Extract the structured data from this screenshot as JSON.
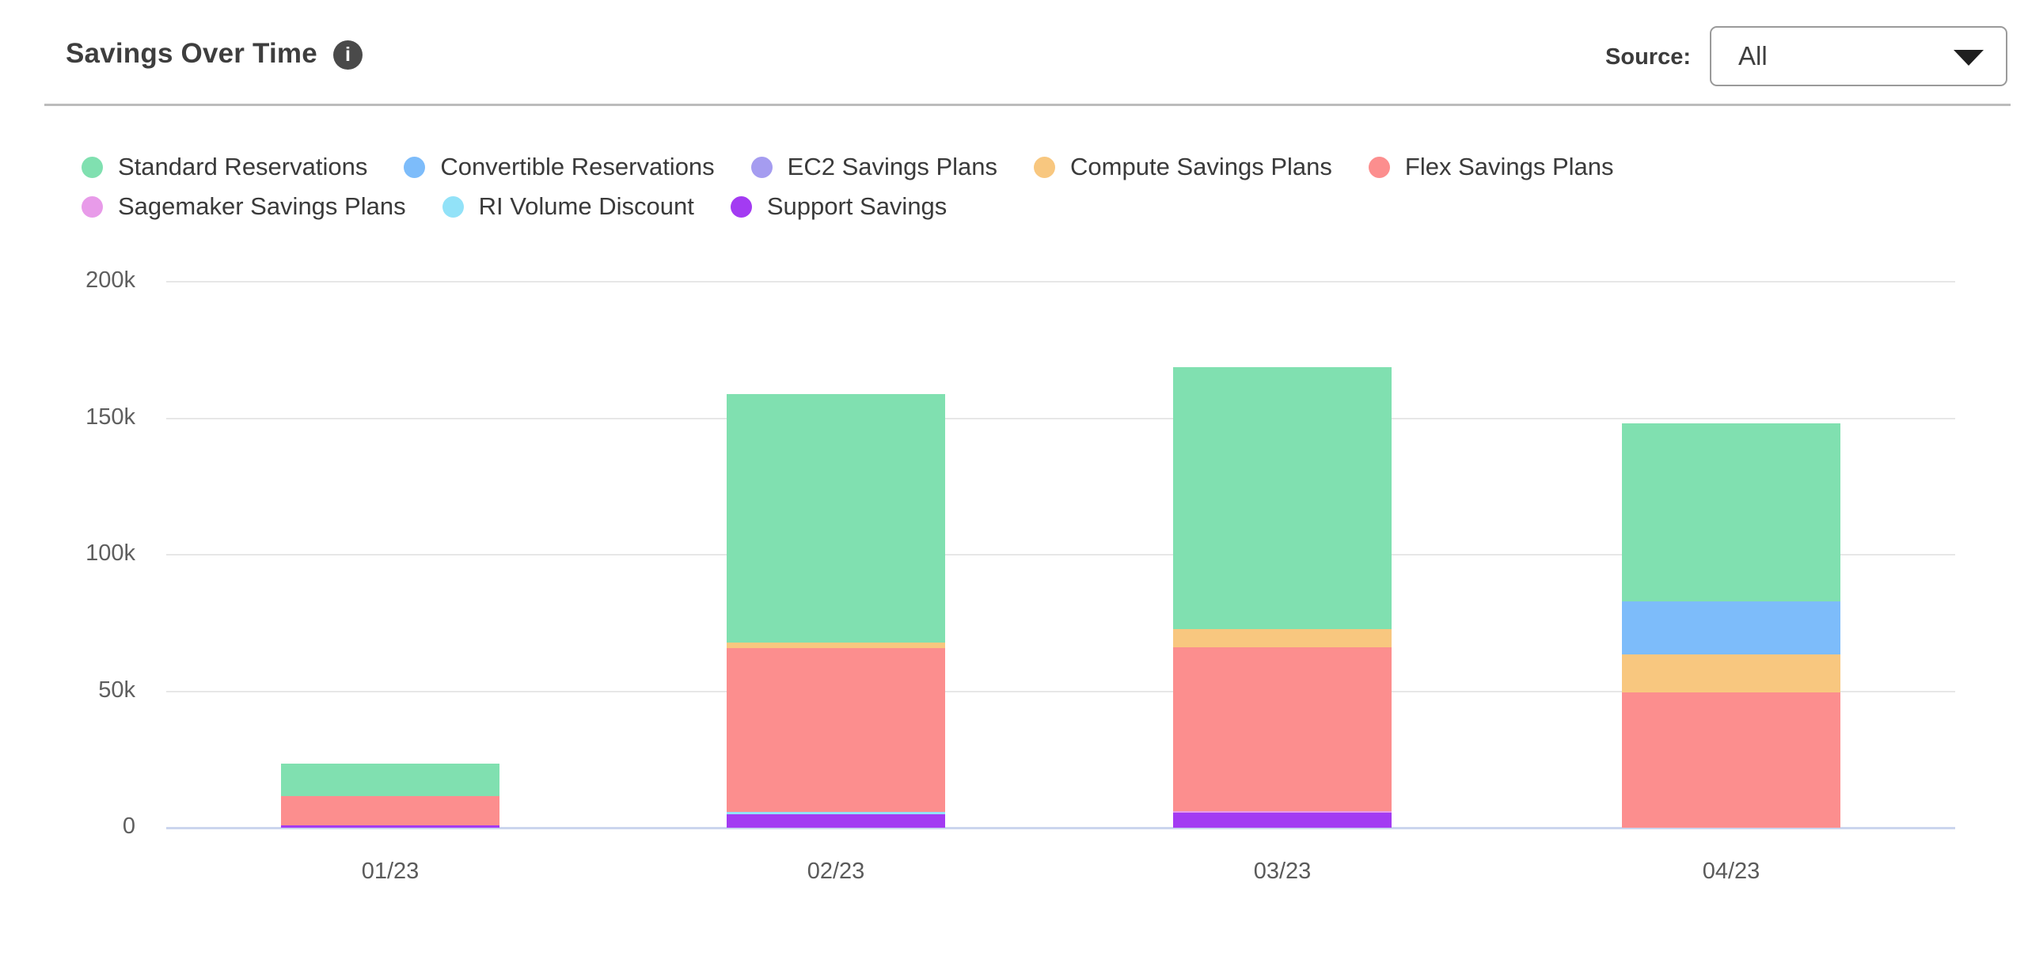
{
  "header": {
    "title": "Savings Over Time",
    "info_icon": "i",
    "source_label": "Source:",
    "source_value": "All"
  },
  "legend": {
    "rows": [
      [
        {
          "label": "Standard Reservations",
          "color": "#80E0B0"
        },
        {
          "label": "Convertible Reservations",
          "color": "#7DBCFA"
        },
        {
          "label": "EC2 Savings Plans",
          "color": "#A59CF0"
        },
        {
          "label": "Compute Savings Plans",
          "color": "#F8C77F"
        },
        {
          "label": "Flex Savings Plans",
          "color": "#FC8E8E"
        }
      ],
      [
        {
          "label": "Sagemaker Savings Plans",
          "color": "#E89BE9"
        },
        {
          "label": "RI Volume Discount",
          "color": "#92E2F8"
        },
        {
          "label": "Support Savings",
          "color": "#A33BF2"
        }
      ]
    ]
  },
  "chart_data": {
    "type": "bar",
    "stacked": true,
    "title": "Savings Over Time",
    "xlabel": "",
    "ylabel": "",
    "unit": "thousands",
    "ylim": [
      0,
      200
    ],
    "grid": true,
    "legend_position": "top",
    "y_ticks": [
      {
        "label": "200k",
        "value": 200
      },
      {
        "label": "150k",
        "value": 150
      },
      {
        "label": "100k",
        "value": 100
      },
      {
        "label": "50k",
        "value": 50
      },
      {
        "label": "0",
        "value": 0
      }
    ],
    "categories": [
      "01/23",
      "02/23",
      "03/23",
      "04/23"
    ],
    "series": [
      {
        "name": "Standard Reservations",
        "color": "#80E0B0",
        "values": [
          12,
          91,
          96,
          65
        ]
      },
      {
        "name": "Convertible Reservations",
        "color": "#7DBCFA",
        "values": [
          0,
          0,
          0,
          19.5
        ]
      },
      {
        "name": "EC2 Savings Plans",
        "color": "#A59CF0",
        "values": [
          0,
          0,
          0,
          0
        ]
      },
      {
        "name": "Compute Savings Plans",
        "color": "#F8C77F",
        "values": [
          0,
          2,
          6.5,
          14
        ]
      },
      {
        "name": "Flex Savings Plans",
        "color": "#FC8E8E",
        "values": [
          10.5,
          60,
          60,
          49.5
        ]
      },
      {
        "name": "Sagemaker Savings Plans",
        "color": "#E89BE9",
        "values": [
          0,
          0,
          0.7,
          0
        ]
      },
      {
        "name": "RI Volume Discount",
        "color": "#92E2F8",
        "values": [
          0,
          0.8,
          0,
          0
        ]
      },
      {
        "name": "Support Savings",
        "color": "#A33BF2",
        "values": [
          1,
          5,
          5.5,
          0
        ]
      }
    ]
  }
}
